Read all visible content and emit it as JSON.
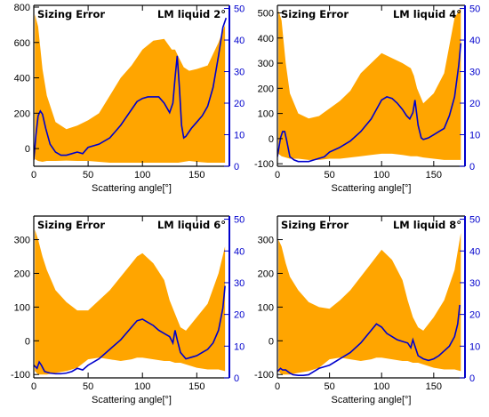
{
  "chart_data": [
    {
      "type": "area",
      "title_left": "Sizing Error",
      "title_right": "LM liquid 2°",
      "xlabel": "Scattering angle[°]",
      "xlim": [
        0,
        180
      ],
      "x_ticks": [
        0,
        50,
        100,
        150
      ],
      "ylim_left": [
        -100,
        810
      ],
      "y_ticks_left": [
        0,
        200,
        400,
        600,
        800
      ],
      "ylim_right": [
        0,
        51
      ],
      "y_ticks_right": [
        0,
        10,
        20,
        30,
        40,
        50
      ],
      "colors": {
        "band": "#FFA500",
        "line": "#0000CC",
        "right_axis": "#0000CC"
      },
      "series": [
        {
          "type": "area",
          "x": [
            1,
            4,
            8,
            12,
            20,
            30,
            40,
            50,
            60,
            70,
            80,
            90,
            100,
            110,
            120,
            127,
            130,
            133,
            138,
            143,
            150,
            160,
            170,
            176
          ],
          "upper": [
            760,
            690,
            450,
            300,
            150,
            110,
            130,
            160,
            200,
            300,
            400,
            470,
            560,
            610,
            620,
            560,
            560,
            520,
            460,
            440,
            450,
            470,
            600,
            700
          ],
          "lower": [
            -60,
            -70,
            -75,
            -70,
            -70,
            -68,
            -70,
            -70,
            -75,
            -80,
            -80,
            -80,
            -80,
            -80,
            -80,
            -80,
            -80,
            -80,
            -75,
            -70,
            -75,
            -80,
            -80,
            -80
          ]
        },
        {
          "type": "line",
          "axis": "right",
          "x": [
            0,
            2,
            4,
            6,
            8,
            11,
            15,
            20,
            25,
            30,
            35,
            40,
            45,
            50,
            60,
            70,
            80,
            90,
            95,
            100,
            105,
            110,
            115,
            120,
            125,
            128,
            130,
            132,
            134,
            136,
            138,
            140,
            145,
            150,
            155,
            160,
            165,
            170,
            174,
            177
          ],
          "y": [
            2,
            10,
            16,
            17.5,
            16.5,
            12,
            7,
            4.5,
            3.5,
            3.5,
            4,
            4.5,
            4,
            6,
            7,
            9,
            13,
            18,
            20.5,
            21.5,
            22,
            22,
            22,
            20,
            17,
            20,
            28,
            35,
            25,
            13,
            9,
            9.5,
            12,
            14,
            16,
            19,
            25,
            35,
            44,
            47
          ]
        }
      ]
    },
    {
      "type": "area",
      "title_left": "Sizing Error",
      "title_right": "LM liquid 4°",
      "xlabel": "Scattering angle[°]",
      "xlim": [
        0,
        180
      ],
      "x_ticks": [
        0,
        50,
        100,
        150
      ],
      "ylim_left": [
        -110,
        530
      ],
      "y_ticks_left": [
        -100,
        0,
        100,
        200,
        300,
        400,
        500
      ],
      "ylim_right": [
        0,
        51
      ],
      "y_ticks_right": [
        0,
        10,
        20,
        30,
        40,
        50
      ],
      "colors": {
        "band": "#FFA500",
        "line": "#0000CC",
        "right_axis": "#0000CC"
      },
      "series": [
        {
          "type": "area",
          "x": [
            1,
            4,
            8,
            12,
            20,
            30,
            40,
            50,
            60,
            70,
            80,
            90,
            100,
            110,
            120,
            128,
            131,
            134,
            140,
            150,
            160,
            170,
            176
          ],
          "upper": [
            510,
            470,
            300,
            180,
            100,
            80,
            90,
            120,
            150,
            190,
            260,
            300,
            340,
            320,
            300,
            280,
            250,
            200,
            140,
            180,
            260,
            480,
            520
          ],
          "lower": [
            -60,
            -70,
            -75,
            -80,
            -80,
            -85,
            -85,
            -80,
            -80,
            -75,
            -70,
            -65,
            -60,
            -60,
            -65,
            -70,
            -70,
            -70,
            -75,
            -80,
            -85,
            -85,
            -85
          ]
        },
        {
          "type": "line",
          "axis": "right",
          "x": [
            0,
            3,
            5,
            7,
            9,
            12,
            16,
            20,
            25,
            30,
            35,
            40,
            45,
            50,
            60,
            70,
            80,
            90,
            95,
            100,
            105,
            110,
            115,
            120,
            124,
            127,
            130,
            132,
            135,
            138,
            140,
            145,
            150,
            155,
            160,
            165,
            170,
            174,
            176
          ],
          "y": [
            3,
            9,
            11,
            11,
            8,
            3,
            2,
            1.5,
            1.5,
            1.5,
            2,
            2.5,
            3,
            4.5,
            6,
            8,
            11,
            15,
            18,
            21,
            22,
            21.5,
            20,
            18,
            16,
            15,
            17,
            21,
            13,
            9,
            8.5,
            9,
            10,
            11,
            12,
            16,
            22,
            32,
            39
          ]
        }
      ]
    },
    {
      "type": "area",
      "title_left": "Sizing Error",
      "title_right": "LM liquid 6°",
      "xlabel": "Scattering angle[°]",
      "xlim": [
        0,
        180
      ],
      "x_ticks": [
        0,
        50,
        100,
        150
      ],
      "ylim_left": [
        -110,
        370
      ],
      "y_ticks_left": [
        -100,
        0,
        100,
        200,
        300
      ],
      "ylim_right": [
        0,
        51
      ],
      "y_ticks_right": [
        0,
        10,
        20,
        30,
        40,
        50
      ],
      "colors": {
        "band": "#FFA500",
        "line": "#0000CC",
        "right_axis": "#0000CC"
      },
      "series": [
        {
          "type": "area",
          "x": [
            1,
            4,
            8,
            12,
            20,
            30,
            40,
            50,
            60,
            70,
            80,
            90,
            95,
            100,
            110,
            120,
            125,
            130,
            135,
            140,
            150,
            160,
            170,
            176
          ],
          "upper": [
            330,
            300,
            250,
            210,
            150,
            115,
            90,
            90,
            120,
            150,
            190,
            230,
            250,
            260,
            230,
            180,
            120,
            80,
            40,
            30,
            70,
            110,
            200,
            280
          ],
          "lower": [
            -90,
            -100,
            -100,
            -100,
            -95,
            -90,
            -80,
            -55,
            -50,
            -55,
            -60,
            -55,
            -50,
            -50,
            -55,
            -60,
            -60,
            -65,
            -65,
            -70,
            -80,
            -85,
            -85,
            -90
          ]
        },
        {
          "type": "line",
          "axis": "right",
          "x": [
            0,
            3,
            5,
            7,
            10,
            15,
            20,
            25,
            30,
            35,
            40,
            45,
            50,
            60,
            70,
            80,
            90,
            95,
            100,
            105,
            110,
            115,
            120,
            125,
            128,
            130,
            132,
            135,
            140,
            145,
            150,
            155,
            160,
            165,
            170,
            174,
            176
          ],
          "y": [
            4,
            3,
            5,
            4,
            2,
            1.5,
            1.3,
            1.3,
            1.5,
            2,
            3,
            2.5,
            4,
            6,
            9,
            12,
            16,
            18,
            18.5,
            17.5,
            16.5,
            15,
            14,
            13,
            11,
            15,
            12,
            8,
            6,
            6.5,
            7,
            8,
            9,
            11,
            15,
            22,
            29
          ]
        }
      ]
    },
    {
      "type": "area",
      "title_left": "Sizing Error",
      "title_right": "LM liquid 8°",
      "xlabel": "Scattering angle[°]",
      "xlim": [
        0,
        180
      ],
      "x_ticks": [
        0,
        50,
        100,
        150
      ],
      "ylim_left": [
        -110,
        370
      ],
      "y_ticks_left": [
        -100,
        0,
        100,
        200,
        300
      ],
      "ylim_right": [
        0,
        51
      ],
      "y_ticks_right": [
        0,
        10,
        20,
        30,
        40,
        50
      ],
      "colors": {
        "band": "#FFA500",
        "line": "#0000CC",
        "right_axis": "#0000CC"
      },
      "series": [
        {
          "type": "area",
          "x": [
            1,
            4,
            8,
            12,
            20,
            30,
            40,
            50,
            60,
            70,
            80,
            90,
            95,
            100,
            110,
            120,
            125,
            130,
            135,
            140,
            150,
            160,
            170,
            176
          ],
          "upper": [
            300,
            280,
            230,
            190,
            150,
            115,
            100,
            95,
            120,
            150,
            190,
            230,
            250,
            270,
            240,
            180,
            120,
            70,
            40,
            30,
            70,
            120,
            210,
            320
          ],
          "lower": [
            -90,
            -100,
            -100,
            -100,
            -95,
            -90,
            -80,
            -55,
            -50,
            -55,
            -60,
            -55,
            -50,
            -50,
            -55,
            -60,
            -60,
            -65,
            -65,
            -70,
            -80,
            -85,
            -85,
            -90
          ]
        },
        {
          "type": "line",
          "axis": "right",
          "x": [
            0,
            3,
            5,
            8,
            12,
            15,
            20,
            25,
            30,
            35,
            40,
            45,
            50,
            60,
            70,
            80,
            90,
            95,
            100,
            105,
            110,
            115,
            120,
            125,
            128,
            130,
            132,
            135,
            140,
            145,
            150,
            155,
            160,
            165,
            170,
            173,
            175
          ],
          "y": [
            2,
            3,
            2.5,
            2.5,
            1.5,
            1,
            0.8,
            0.8,
            1,
            2,
            3,
            3.5,
            4,
            6,
            8,
            11,
            15,
            17,
            16,
            14,
            13,
            12,
            11.5,
            11,
            9.5,
            12,
            10,
            7,
            6,
            5.5,
            6,
            7,
            8.5,
            10,
            13,
            17,
            23
          ]
        }
      ]
    }
  ]
}
